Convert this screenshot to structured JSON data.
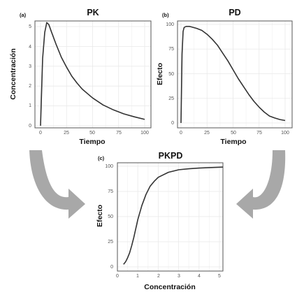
{
  "colors": {
    "curve": "#333333",
    "grid": "#e9e9e9",
    "panel_border": "#555555",
    "arrow": "#a8a8a8"
  },
  "icons": [
    "curved-arrow-icon",
    "curved-arrow-icon"
  ],
  "chart_data": [
    {
      "id": "pk",
      "panel_label": "(a)",
      "type": "line",
      "title": "PK",
      "xlabel": "Tiempo",
      "ylabel": "Concentración",
      "xlim": [
        0,
        100
      ],
      "ylim": [
        0,
        5.3
      ],
      "xticks": [
        "0",
        "25",
        "50",
        "75",
        "100"
      ],
      "yticks": [
        "0",
        "1",
        "2",
        "3",
        "4",
        "5"
      ],
      "grid": true,
      "series": [
        {
          "x": [
            0,
            2,
            4,
            6,
            8,
            10,
            15,
            20,
            25,
            30,
            35,
            40,
            50,
            60,
            70,
            80,
            90,
            100
          ],
          "y": [
            0,
            3.4,
            4.7,
            5.2,
            5.1,
            4.8,
            4.1,
            3.45,
            2.95,
            2.5,
            2.15,
            1.85,
            1.4,
            1.05,
            0.8,
            0.6,
            0.45,
            0.32
          ]
        }
      ]
    },
    {
      "id": "pd",
      "panel_label": "(b)",
      "type": "line",
      "title": "PD",
      "xlabel": "Tiempo",
      "ylabel": "Efecto",
      "xlim": [
        0,
        100
      ],
      "ylim": [
        0,
        102
      ],
      "xticks": [
        "0",
        "25",
        "50",
        "75",
        "100"
      ],
      "yticks": [
        "0",
        "25",
        "50",
        "75",
        "100"
      ],
      "grid": true,
      "series": [
        {
          "x": [
            0,
            1,
            2,
            3,
            5,
            8,
            10,
            15,
            20,
            25,
            30,
            35,
            40,
            45,
            50,
            55,
            60,
            65,
            70,
            75,
            80,
            85,
            90,
            95,
            100
          ],
          "y": [
            0,
            70,
            93,
            97,
            98,
            98,
            97.5,
            96,
            94,
            90,
            85,
            79,
            71,
            63,
            54,
            45,
            37,
            29,
            22,
            16,
            11,
            7,
            5,
            3.5,
            2.5
          ]
        }
      ]
    },
    {
      "id": "pkpd",
      "panel_label": "(c)",
      "type": "line",
      "title": "PKPD",
      "xlabel": "Concentración",
      "ylabel": "Efecto",
      "xlim": [
        0,
        5.3
      ],
      "ylim": [
        0,
        102
      ],
      "xticks": [
        "0",
        "1",
        "2",
        "3",
        "4",
        "5"
      ],
      "yticks": [
        "0",
        "25",
        "50",
        "75",
        "100"
      ],
      "grid": true,
      "series": [
        {
          "x": [
            0.3,
            0.4,
            0.5,
            0.6,
            0.7,
            0.8,
            0.9,
            1.0,
            1.2,
            1.4,
            1.6,
            1.8,
            2.0,
            2.5,
            3.0,
            3.5,
            4.0,
            4.5,
            5.2
          ],
          "y": [
            2.5,
            5,
            9,
            14,
            21,
            29,
            38,
            47,
            61,
            72,
            80,
            85,
            89,
            94,
            96.5,
            97.5,
            98.2,
            98.7,
            99.2
          ]
        }
      ]
    }
  ]
}
